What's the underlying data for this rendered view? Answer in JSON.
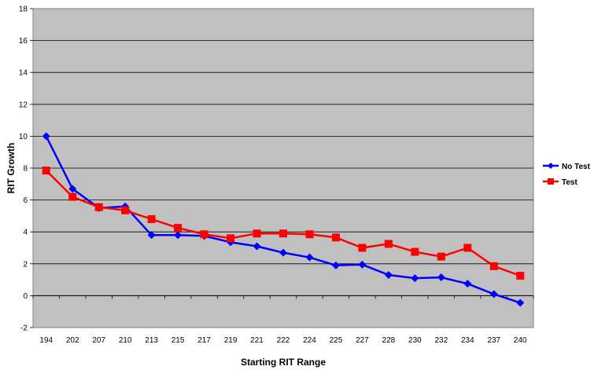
{
  "chart_data": {
    "type": "line",
    "xlabel": "Starting RIT Range",
    "ylabel": "RIT Growth",
    "categories": [
      "194",
      "202",
      "207",
      "210",
      "213",
      "215",
      "217",
      "219",
      "221",
      "222",
      "224",
      "225",
      "227",
      "228",
      "230",
      "232",
      "234",
      "237",
      "240"
    ],
    "ylim": [
      -2,
      18
    ],
    "yticks": [
      -2,
      0,
      2,
      4,
      6,
      8,
      10,
      12,
      14,
      16,
      18
    ],
    "grid": "horizontal",
    "legend_position": "right",
    "series": [
      {
        "name": "No Test",
        "color": "#0000ff",
        "marker": "diamond",
        "values": [
          10.0,
          6.7,
          5.5,
          5.6,
          3.8,
          3.8,
          3.75,
          3.35,
          3.1,
          2.7,
          2.4,
          1.9,
          1.95,
          1.3,
          1.1,
          1.15,
          0.75,
          0.1,
          -0.45
        ]
      },
      {
        "name": "Test",
        "color": "#ff0000",
        "marker": "square",
        "values": [
          7.85,
          6.2,
          5.55,
          5.35,
          4.8,
          4.25,
          3.85,
          3.6,
          3.9,
          3.9,
          3.85,
          3.65,
          3.0,
          3.25,
          2.75,
          2.45,
          3.0,
          1.85,
          1.25
        ]
      }
    ]
  }
}
